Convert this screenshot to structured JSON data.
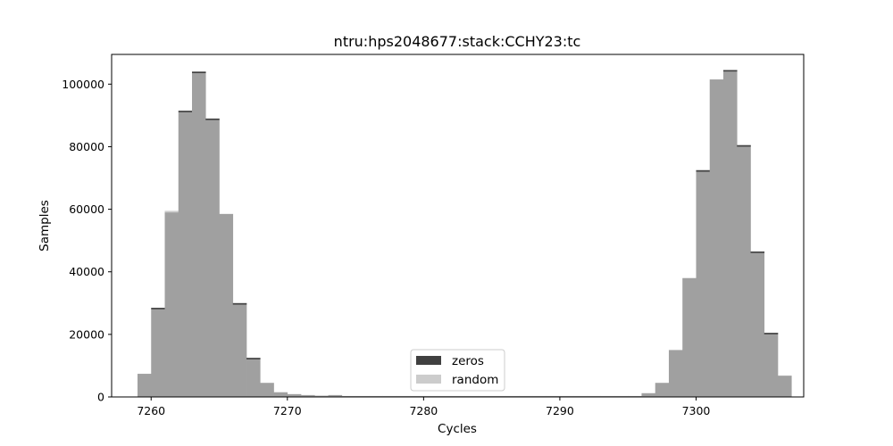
{
  "chart_data": {
    "type": "bar",
    "title": "ntru:hps2048677:stack:CCHY23:tc",
    "xlabel": "Cycles",
    "ylabel": "Samples",
    "xlim": [
      7257.1,
      7307.9
    ],
    "ylim": [
      0,
      109500
    ],
    "x_ticks": [
      7260,
      7270,
      7280,
      7290,
      7300
    ],
    "y_ticks": [
      0,
      20000,
      40000,
      60000,
      80000,
      100000
    ],
    "bin_width": 1,
    "bin_edges_start": 7259,
    "legend_position": "lower center",
    "grid": false,
    "colors": {
      "zeros": "#404040",
      "random": "#cccccc",
      "overlap": "#a0a0a0"
    },
    "series": [
      {
        "name": "zeros",
        "values": [
          7400,
          28500,
          59000,
          91500,
          104000,
          89000,
          58500,
          30000,
          12500,
          4500,
          1500,
          900,
          600,
          400,
          600,
          300,
          300,
          300,
          300,
          300,
          300,
          300,
          300,
          300,
          300,
          300,
          300,
          300,
          300,
          300,
          300,
          300,
          300,
          300,
          300,
          300,
          300,
          1200,
          4500,
          15000,
          38000,
          72500,
          101500,
          104500,
          80500,
          46500,
          20500,
          6800
        ]
      },
      {
        "name": "random",
        "values": [
          7400,
          28000,
          59500,
          91000,
          103500,
          88500,
          58500,
          29500,
          12000,
          4500,
          1500,
          900,
          600,
          400,
          600,
          300,
          300,
          300,
          300,
          300,
          300,
          300,
          300,
          300,
          300,
          300,
          300,
          300,
          300,
          300,
          300,
          300,
          300,
          300,
          300,
          300,
          300,
          1200,
          4500,
          15000,
          38000,
          72000,
          101500,
          104000,
          80000,
          46000,
          20000,
          6800
        ]
      }
    ]
  }
}
